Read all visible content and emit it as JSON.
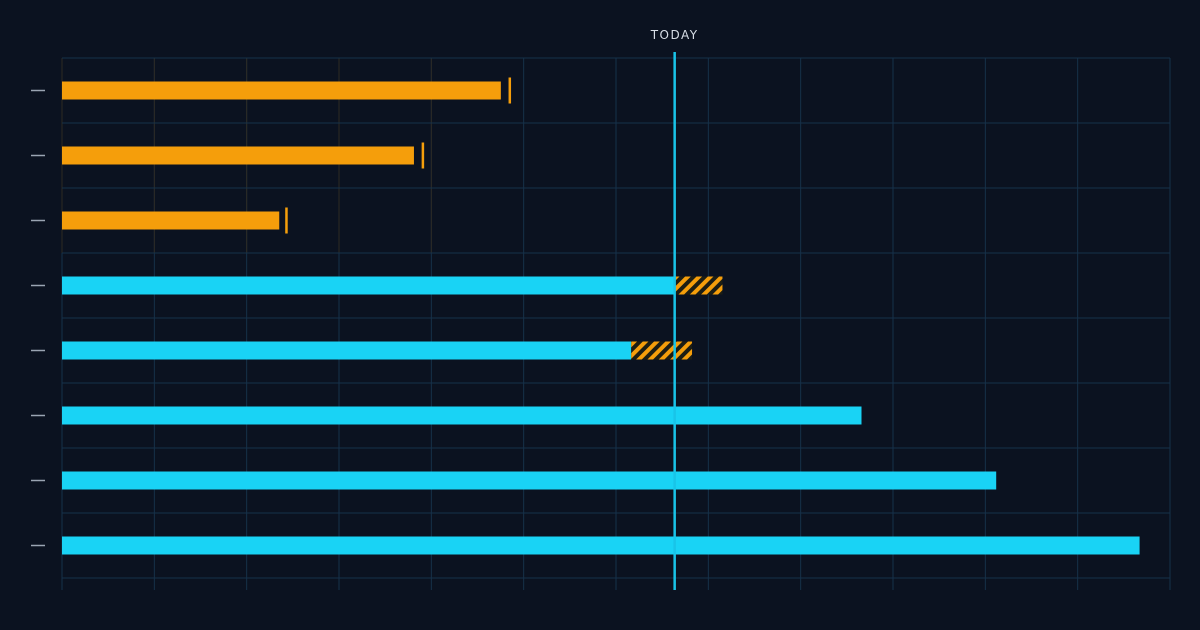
{
  "chart_data": {
    "type": "bar",
    "orientation": "horizontal",
    "title": "",
    "xlabel": "",
    "ylabel": "",
    "grid": true,
    "x_grid_lines": 13,
    "xlim": [
      0,
      12.75
    ],
    "today": {
      "label": "TODAY",
      "x": 7.05
    },
    "categories": [
      "",
      "",
      "",
      "",
      "",
      "",
      "",
      ""
    ],
    "bars": [
      {
        "kind": "completed",
        "start": 0,
        "end": 5.05,
        "marker": 5.15
      },
      {
        "kind": "completed",
        "start": 0,
        "end": 4.05,
        "marker": 4.15
      },
      {
        "kind": "completed",
        "start": 0,
        "end": 2.5,
        "marker": 2.58
      },
      {
        "kind": "in-progress",
        "start": 0,
        "end": 7.05,
        "overrun_end": 7.6
      },
      {
        "kind": "in-progress",
        "start": 0,
        "end": 6.55,
        "overrun_end": 7.25
      },
      {
        "kind": "in-progress",
        "start": 0,
        "end": 9.2
      },
      {
        "kind": "in-progress",
        "start": 0,
        "end": 10.75
      },
      {
        "kind": "in-progress",
        "start": 0,
        "end": 12.4
      }
    ]
  },
  "colors": {
    "background": "#0b1220",
    "completed": "#f59e0b",
    "in_progress": "#19d3f5",
    "today_line": "#19c4e8",
    "grid": "#16314a",
    "grid_warm": "#2e2a22",
    "tick": "#9aa4b2",
    "label": "#d7dde6"
  }
}
